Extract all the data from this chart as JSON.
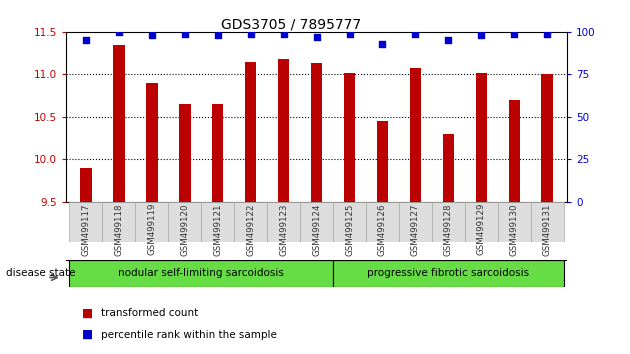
{
  "title": "GDS3705 / 7895777",
  "categories": [
    "GSM499117",
    "GSM499118",
    "GSM499119",
    "GSM499120",
    "GSM499121",
    "GSM499122",
    "GSM499123",
    "GSM499124",
    "GSM499125",
    "GSM499126",
    "GSM499127",
    "GSM499128",
    "GSM499129",
    "GSM499130",
    "GSM499131"
  ],
  "bar_values": [
    9.9,
    11.35,
    10.9,
    10.65,
    10.65,
    11.15,
    11.18,
    11.13,
    11.02,
    10.45,
    11.07,
    10.3,
    11.02,
    10.7,
    11.0
  ],
  "percentile_values": [
    95,
    100,
    98,
    99,
    98,
    99,
    99,
    97,
    99,
    93,
    99,
    95,
    98,
    99,
    99
  ],
  "ylim_left": [
    9.5,
    11.5
  ],
  "ylim_right": [
    0,
    100
  ],
  "yticks_left": [
    9.5,
    10.0,
    10.5,
    11.0,
    11.5
  ],
  "yticks_right": [
    0,
    25,
    50,
    75,
    100
  ],
  "bar_color": "#bb0000",
  "percentile_color": "#0000cc",
  "group1_label": "nodular self-limiting sarcoidosis",
  "group2_label": "progressive fibrotic sarcoidosis",
  "group1_indices": [
    0,
    7
  ],
  "group2_indices": [
    8,
    14
  ],
  "disease_state_label": "disease state",
  "legend_bar_label": "transformed count",
  "legend_pct_label": "percentile rank within the sample",
  "bar_color_hex": "#bb0000",
  "percentile_color_hex": "#0000cc",
  "tick_label_color_left": "#bb0000",
  "tick_label_color_right": "#0000cc",
  "gridline_ticks": [
    10.0,
    10.5,
    11.0
  ]
}
